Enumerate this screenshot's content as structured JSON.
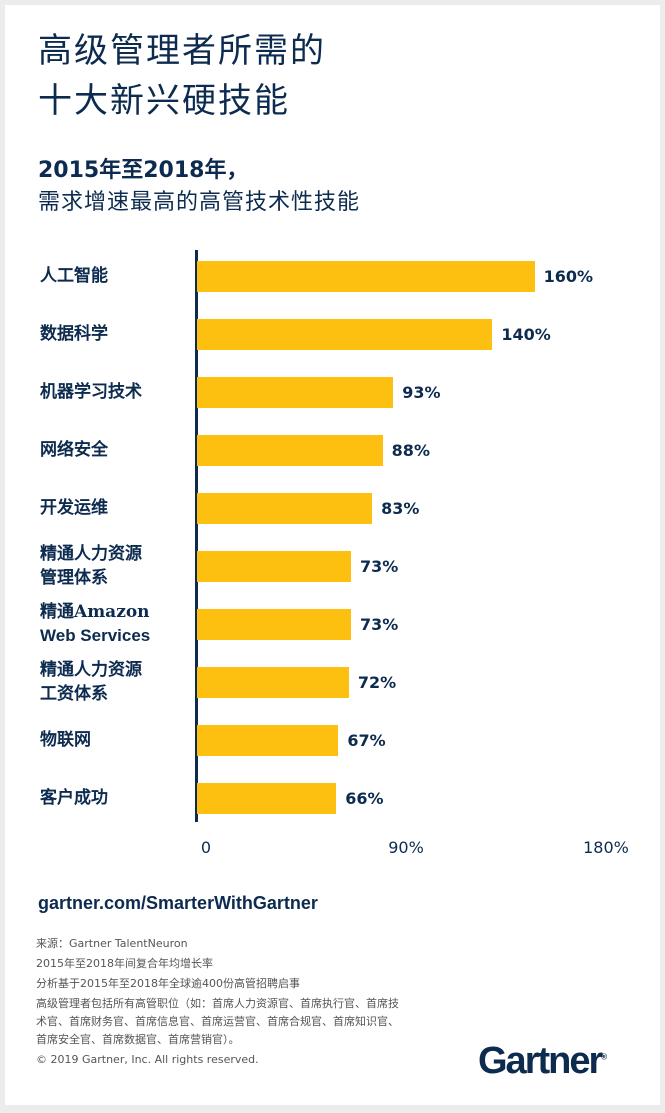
{
  "title": [
    "高级管理者所需的",
    "十大新兴硬技能"
  ],
  "subtitle": [
    "2015年至2018年，",
    "需求增速最高的高管技术性技能"
  ],
  "colors": {
    "bar": "#fdc010",
    "text": "#0d2b4f"
  },
  "chart_data": {
    "type": "bar",
    "orientation": "horizontal",
    "categories": [
      [
        "人工智能"
      ],
      [
        "数据科学"
      ],
      [
        "机器学习技术"
      ],
      [
        "网络安全"
      ],
      [
        "开发运维"
      ],
      [
        "精通人力资源",
        "管理体系"
      ],
      [
        "精通Amazon",
        "Web Services"
      ],
      [
        "精通人力资源",
        "工资体系"
      ],
      [
        "物联网"
      ],
      [
        "客户成功"
      ]
    ],
    "values": [
      160,
      140,
      93,
      88,
      83,
      73,
      73,
      72,
      67,
      66
    ],
    "value_labels": [
      "160%",
      "140%",
      "93%",
      "88%",
      "83%",
      "73%",
      "73%",
      "72%",
      "67%",
      "66%"
    ],
    "xlim": [
      0,
      180
    ],
    "xticks": [
      0,
      90,
      180
    ],
    "xtick_labels": [
      "0",
      "90%",
      "180%"
    ],
    "unit": "%"
  },
  "footer": {
    "url": "gartner.com/SmarterWithGartner",
    "notes": [
      "来源：Gartner TalentNeuron",
      "2015年至2018年间复合年均增长率",
      "分析基于2015年至2018年全球逾400份高管招聘启事",
      "高级管理者包括所有高管职位（如：首席人力资源官、首席执行官、首席技术官、首席财务官、首席信息官、首席运营官、首席合规官、首席知识官、首席安全官、首席数据官、首席营销官）。",
      "© 2019 Gartner, Inc. All rights reserved."
    ],
    "logo": "Gartner"
  }
}
